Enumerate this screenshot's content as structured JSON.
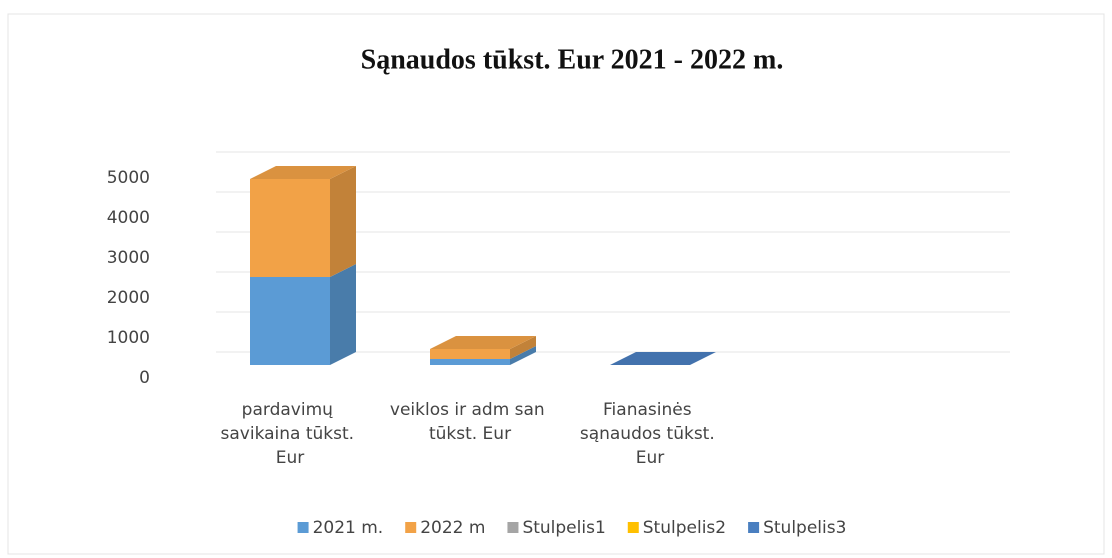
{
  "chart_data": {
    "type": "bar3d_stacked",
    "title": "Sąnaudos tūkst. Eur 2021 - 2022 m.",
    "categories": [
      "pardavimų savikaina tūkst. Eur",
      "veiklos ir adm san tūkst. Eur",
      "Fianasinės sąnaudos tūkst. Eur"
    ],
    "series": [
      {
        "name": "2021 m.",
        "color": "#5b9bd5",
        "values": [
          2200,
          150,
          0
        ]
      },
      {
        "name": "2022 m",
        "color": "#f2a247",
        "values": [
          2450,
          250,
          0
        ]
      },
      {
        "name": "Stulpelis1",
        "color": "#a5a5a5",
        "values": [
          0,
          0,
          0
        ]
      },
      {
        "name": "Stulpelis2",
        "color": "#ffc000",
        "values": [
          0,
          0,
          0
        ]
      },
      {
        "name": "Stulpelis3",
        "color": "#4a7fc0",
        "values": [
          0,
          0,
          0
        ]
      }
    ],
    "ylim": [
      0,
      5000
    ],
    "yticks": [
      0,
      1000,
      2000,
      3000,
      4000,
      5000
    ],
    "grid": true,
    "legend": "bottom"
  }
}
